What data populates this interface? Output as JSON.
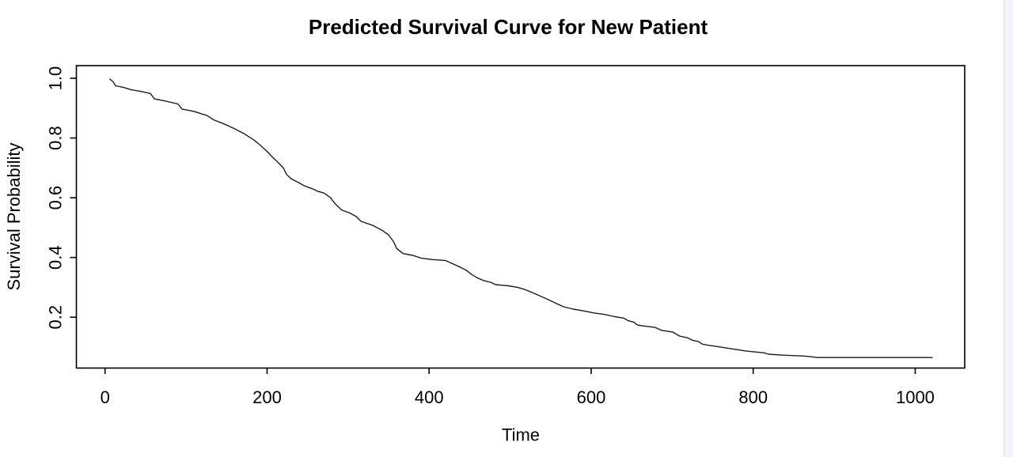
{
  "window": {
    "background": "#ffffff",
    "scrollbar_track_color": "#f1f3f6",
    "scrollbar_divider_color": "#d9dee2"
  },
  "chart_data": {
    "type": "line",
    "title": "Predicted Survival Curve for New Patient",
    "xlabel": "Time",
    "ylabel": "Survival Probability",
    "line_color": "#1c1c1c",
    "box_color": "#000000",
    "grid": false,
    "legend": null,
    "xlim": [
      -35.4,
      1061.1
    ],
    "ylim": [
      0.0298,
      1.0424
    ],
    "x_ticks": [
      {
        "value": 0,
        "label": "0"
      },
      {
        "value": 200,
        "label": "200"
      },
      {
        "value": 400,
        "label": "400"
      },
      {
        "value": 600,
        "label": "600"
      },
      {
        "value": 800,
        "label": "800"
      },
      {
        "value": 1000,
        "label": "1000"
      }
    ],
    "y_ticks": [
      {
        "value": 0.2,
        "label": "0.2"
      },
      {
        "value": 0.4,
        "label": "0.4"
      },
      {
        "value": 0.6,
        "label": "0.6"
      },
      {
        "value": 0.8,
        "label": "0.8"
      },
      {
        "value": 1.0,
        "label": "1.0"
      }
    ],
    "series": [
      {
        "name": "predicted-survival",
        "points": [
          [
            6,
            0.997
          ],
          [
            10,
            0.988
          ],
          [
            13,
            0.975
          ],
          [
            22,
            0.97
          ],
          [
            32,
            0.962
          ],
          [
            44,
            0.956
          ],
          [
            56,
            0.949
          ],
          [
            61,
            0.931
          ],
          [
            74,
            0.924
          ],
          [
            90,
            0.914
          ],
          [
            95,
            0.897
          ],
          [
            110,
            0.889
          ],
          [
            126,
            0.875
          ],
          [
            134,
            0.861
          ],
          [
            148,
            0.846
          ],
          [
            160,
            0.831
          ],
          [
            172,
            0.814
          ],
          [
            184,
            0.793
          ],
          [
            192,
            0.775
          ],
          [
            200,
            0.755
          ],
          [
            206,
            0.738
          ],
          [
            212,
            0.722
          ],
          [
            220,
            0.7
          ],
          [
            224,
            0.678
          ],
          [
            230,
            0.663
          ],
          [
            238,
            0.652
          ],
          [
            246,
            0.64
          ],
          [
            256,
            0.63
          ],
          [
            262,
            0.622
          ],
          [
            270,
            0.616
          ],
          [
            278,
            0.601
          ],
          [
            284,
            0.58
          ],
          [
            292,
            0.559
          ],
          [
            302,
            0.549
          ],
          [
            310,
            0.537
          ],
          [
            316,
            0.521
          ],
          [
            330,
            0.508
          ],
          [
            342,
            0.491
          ],
          [
            350,
            0.476
          ],
          [
            356,
            0.453
          ],
          [
            360,
            0.43
          ],
          [
            368,
            0.413
          ],
          [
            380,
            0.407
          ],
          [
            390,
            0.398
          ],
          [
            404,
            0.393
          ],
          [
            420,
            0.39
          ],
          [
            430,
            0.378
          ],
          [
            438,
            0.368
          ],
          [
            446,
            0.357
          ],
          [
            452,
            0.344
          ],
          [
            460,
            0.331
          ],
          [
            468,
            0.322
          ],
          [
            476,
            0.317
          ],
          [
            482,
            0.309
          ],
          [
            498,
            0.305
          ],
          [
            509,
            0.3
          ],
          [
            518,
            0.293
          ],
          [
            527,
            0.283
          ],
          [
            537,
            0.271
          ],
          [
            547,
            0.259
          ],
          [
            557,
            0.246
          ],
          [
            566,
            0.235
          ],
          [
            578,
            0.227
          ],
          [
            591,
            0.221
          ],
          [
            604,
            0.214
          ],
          [
            617,
            0.209
          ],
          [
            629,
            0.202
          ],
          [
            640,
            0.197
          ],
          [
            646,
            0.188
          ],
          [
            653,
            0.183
          ],
          [
            657,
            0.174
          ],
          [
            664,
            0.171
          ],
          [
            679,
            0.166
          ],
          [
            687,
            0.156
          ],
          [
            701,
            0.15
          ],
          [
            709,
            0.137
          ],
          [
            719,
            0.131
          ],
          [
            725,
            0.123
          ],
          [
            733,
            0.118
          ],
          [
            737,
            0.11
          ],
          [
            747,
            0.105
          ],
          [
            755,
            0.102
          ],
          [
            772,
            0.095
          ],
          [
            791,
            0.087
          ],
          [
            813,
            0.081
          ],
          [
            819,
            0.076
          ],
          [
            837,
            0.073
          ],
          [
            863,
            0.07
          ],
          [
            880,
            0.065
          ],
          [
            1021,
            0.065
          ]
        ]
      }
    ]
  }
}
